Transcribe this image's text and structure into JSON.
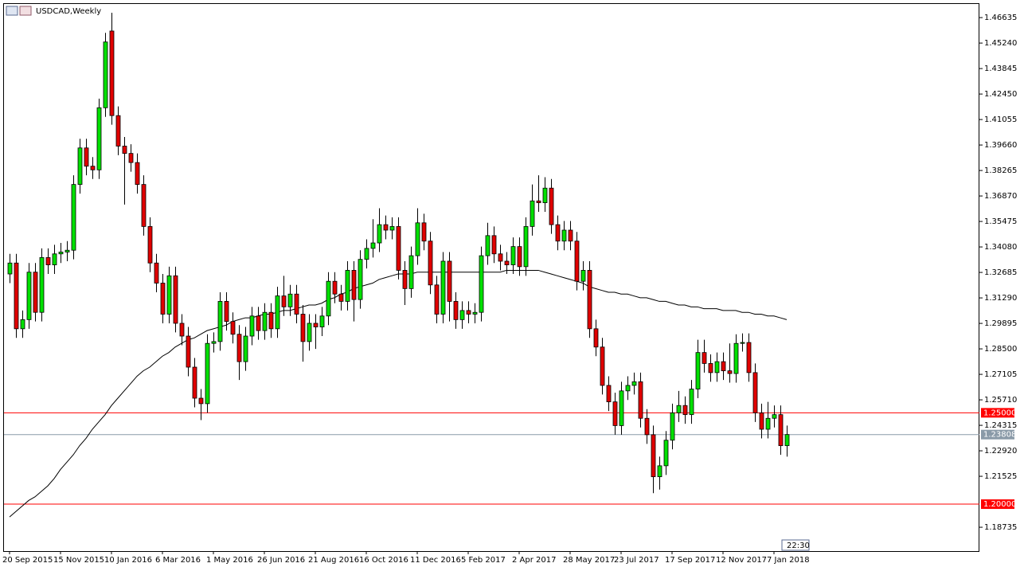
{
  "chart_data": {
    "type": "candlestick",
    "title": "USDCAD,Weekly",
    "timer": "22:30",
    "categories": [
      "20 Sep 2015",
      null,
      null,
      null,
      null,
      null,
      null,
      null,
      "15 Nov 2015",
      null,
      null,
      null,
      null,
      null,
      null,
      null,
      "10 Jan 2016",
      null,
      null,
      null,
      null,
      null,
      null,
      null,
      "6 Mar 2016",
      null,
      null,
      null,
      null,
      null,
      null,
      null,
      "1 May 2016",
      null,
      null,
      null,
      null,
      null,
      null,
      null,
      "26 Jun 2016",
      null,
      null,
      null,
      null,
      null,
      null,
      null,
      "21 Aug 2016",
      null,
      null,
      null,
      null,
      null,
      null,
      null,
      "16 Oct 2016",
      null,
      null,
      null,
      null,
      null,
      null,
      null,
      "11 Dec 2016",
      null,
      null,
      null,
      null,
      null,
      null,
      null,
      "5 Feb 2017",
      null,
      null,
      null,
      null,
      null,
      null,
      null,
      "2 Apr 2017",
      null,
      null,
      null,
      null,
      null,
      null,
      null,
      "28 May 2017",
      null,
      null,
      null,
      null,
      null,
      null,
      null,
      "23 Jul 2017",
      null,
      null,
      null,
      null,
      null,
      null,
      null,
      "17 Sep 2017",
      null,
      null,
      null,
      null,
      null,
      null,
      null,
      "12 Nov 2017",
      null,
      null,
      null,
      null,
      null,
      null,
      null,
      "7 Jan 2018",
      null,
      null
    ],
    "open": [
      1.326,
      1.332,
      1.296,
      1.301,
      1.327,
      1.305,
      1.335,
      1.331,
      1.337,
      1.338,
      1.339,
      1.375,
      1.395,
      1.385,
      1.383,
      1.417,
      1.459,
      1.4127,
      1.396,
      1.392,
      1.387,
      1.375,
      1.352,
      1.332,
      1.321,
      1.304,
      1.325,
      1.299,
      1.292,
      1.275,
      1.258,
      1.255,
      1.288,
      1.289,
      1.311,
      1.3,
      1.293,
      1.278,
      1.292,
      1.303,
      1.295,
      1.305,
      1.296,
      1.314,
      1.308,
      1.315,
      1.304,
      1.289,
      1.299,
      1.297,
      1.303,
      1.322,
      1.315,
      1.311,
      1.328,
      1.312,
      1.334,
      1.34,
      1.343,
      1.353,
      1.35,
      1.352,
      1.328,
      1.318,
      1.336,
      1.354,
      1.344,
      1.32,
      1.304,
      1.333,
      1.311,
      1.301,
      1.306,
      1.304,
      1.305,
      1.336,
      1.347,
      1.337,
      1.333,
      1.331,
      1.341,
      1.33,
      1.352,
      1.366,
      1.365,
      1.373,
      1.353,
      1.344,
      1.35,
      1.344,
      1.322,
      1.328,
      1.296,
      1.286,
      1.265,
      1.256,
      1.243,
      1.262,
      1.265,
      1.267,
      1.247,
      1.238,
      1.215,
      1.221,
      1.235,
      1.25,
      1.254,
      1.249,
      1.263,
      1.283,
      1.277,
      1.272,
      1.278,
      1.273,
      1.2715,
      1.288,
      1.2885,
      1.272,
      1.25,
      1.241,
      1.247,
      1.249,
      1.232
    ],
    "high": [
      1.337,
      1.337,
      1.306,
      1.332,
      1.332,
      1.34,
      1.34,
      1.342,
      1.343,
      1.344,
      1.38,
      1.4,
      1.4,
      1.39,
      1.422,
      1.458,
      1.469,
      1.4177,
      1.401,
      1.397,
      1.392,
      1.38,
      1.357,
      1.337,
      1.326,
      1.33,
      1.33,
      1.304,
      1.297,
      1.28,
      1.263,
      1.293,
      1.294,
      1.316,
      1.316,
      1.305,
      1.298,
      1.297,
      1.308,
      1.308,
      1.31,
      1.31,
      1.319,
      1.325,
      1.32,
      1.32,
      1.309,
      1.304,
      1.304,
      1.308,
      1.327,
      1.327,
      1.32,
      1.333,
      1.333,
      1.339,
      1.345,
      1.356,
      1.362,
      1.358,
      1.357,
      1.357,
      1.333,
      1.341,
      1.362,
      1.359,
      1.349,
      1.325,
      1.338,
      1.338,
      1.316,
      1.311,
      1.311,
      1.31,
      1.341,
      1.354,
      1.352,
      1.342,
      1.338,
      1.346,
      1.346,
      1.357,
      1.375,
      1.38,
      1.379,
      1.378,
      1.358,
      1.355,
      1.355,
      1.349,
      1.333,
      1.333,
      1.301,
      1.291,
      1.27,
      1.261,
      1.267,
      1.27,
      1.272,
      1.272,
      1.252,
      1.243,
      1.226,
      1.24,
      1.255,
      1.262,
      1.259,
      1.268,
      1.29,
      1.29,
      1.282,
      1.283,
      1.283,
      1.288,
      1.293,
      1.2935,
      1.2935,
      1.277,
      1.255,
      1.256,
      1.254,
      1.254,
      1.243
    ],
    "low": [
      1.321,
      1.291,
      1.291,
      1.296,
      1.3,
      1.3,
      1.326,
      1.326,
      1.332,
      1.333,
      1.334,
      1.37,
      1.38,
      1.378,
      1.378,
      1.412,
      1.4077,
      1.391,
      1.364,
      1.382,
      1.37,
      1.347,
      1.327,
      1.316,
      1.299,
      1.299,
      1.294,
      1.287,
      1.27,
      1.253,
      1.246,
      1.25,
      1.283,
      1.284,
      1.295,
      1.288,
      1.268,
      1.273,
      1.287,
      1.29,
      1.29,
      1.291,
      1.291,
      1.303,
      1.303,
      1.299,
      1.278,
      1.284,
      1.285,
      1.292,
      1.298,
      1.31,
      1.306,
      1.306,
      1.3,
      1.307,
      1.329,
      1.335,
      1.338,
      1.345,
      1.345,
      1.323,
      1.309,
      1.313,
      1.331,
      1.339,
      1.315,
      1.299,
      1.299,
      1.3,
      1.296,
      1.296,
      1.299,
      1.299,
      1.3,
      1.331,
      1.332,
      1.328,
      1.326,
      1.326,
      1.325,
      1.325,
      1.347,
      1.36,
      1.36,
      1.348,
      1.339,
      1.339,
      1.339,
      1.317,
      1.317,
      1.291,
      1.281,
      1.26,
      1.251,
      1.238,
      1.238,
      1.257,
      1.26,
      1.242,
      1.233,
      1.206,
      1.208,
      1.216,
      1.23,
      1.245,
      1.244,
      1.244,
      1.258,
      1.272,
      1.267,
      1.267,
      1.268,
      1.2665,
      1.2665,
      1.2835,
      1.267,
      1.245,
      1.236,
      1.236,
      1.242,
      1.227,
      1.226
    ],
    "close": [
      1.332,
      1.296,
      1.301,
      1.327,
      1.305,
      1.335,
      1.331,
      1.337,
      1.338,
      1.339,
      1.375,
      1.395,
      1.385,
      1.383,
      1.417,
      1.453,
      1.4127,
      1.396,
      1.392,
      1.387,
      1.375,
      1.352,
      1.332,
      1.321,
      1.304,
      1.325,
      1.299,
      1.292,
      1.275,
      1.258,
      1.255,
      1.288,
      1.289,
      1.311,
      1.3,
      1.293,
      1.278,
      1.292,
      1.303,
      1.295,
      1.305,
      1.296,
      1.314,
      1.308,
      1.315,
      1.304,
      1.289,
      1.299,
      1.297,
      1.303,
      1.322,
      1.315,
      1.311,
      1.328,
      1.312,
      1.334,
      1.34,
      1.343,
      1.353,
      1.35,
      1.352,
      1.328,
      1.318,
      1.336,
      1.354,
      1.344,
      1.32,
      1.304,
      1.333,
      1.311,
      1.301,
      1.306,
      1.304,
      1.305,
      1.336,
      1.347,
      1.337,
      1.333,
      1.331,
      1.341,
      1.33,
      1.352,
      1.366,
      1.365,
      1.373,
      1.353,
      1.344,
      1.35,
      1.344,
      1.322,
      1.328,
      1.296,
      1.286,
      1.265,
      1.256,
      1.243,
      1.262,
      1.265,
      1.267,
      1.247,
      1.238,
      1.215,
      1.221,
      1.235,
      1.25,
      1.254,
      1.249,
      1.263,
      1.283,
      1.277,
      1.272,
      1.278,
      1.273,
      1.2715,
      1.288,
      1.2885,
      1.272,
      1.25,
      1.241,
      1.247,
      1.249,
      1.232,
      1.2381
    ],
    "up_color": "#00e000",
    "down_color": "#e00000",
    "wick_color": "#000000",
    "overlay_line": {
      "color": "#000000",
      "values": [
        1.193,
        1.196,
        1.199,
        1.202,
        1.204,
        1.207,
        1.21,
        1.214,
        1.219,
        1.223,
        1.227,
        1.232,
        1.236,
        1.241,
        1.245,
        1.249,
        1.254,
        1.258,
        1.262,
        1.266,
        1.27,
        1.273,
        1.275,
        1.278,
        1.281,
        1.283,
        1.286,
        1.288,
        1.29,
        1.291,
        1.293,
        1.295,
        1.296,
        1.297,
        1.298,
        1.3,
        1.301,
        1.302,
        1.302,
        1.303,
        1.304,
        1.304,
        1.305,
        1.306,
        1.306,
        1.307,
        1.308,
        1.309,
        1.309,
        1.31,
        1.312,
        1.313,
        1.315,
        1.316,
        1.318,
        1.319,
        1.32,
        1.321,
        1.323,
        1.324,
        1.325,
        1.326,
        1.326,
        1.326,
        1.327,
        1.327,
        1.327,
        1.327,
        1.327,
        1.327,
        1.327,
        1.327,
        1.327,
        1.327,
        1.327,
        1.327,
        1.327,
        1.327,
        1.328,
        1.328,
        1.328,
        1.328,
        1.328,
        1.328,
        1.327,
        1.326,
        1.325,
        1.324,
        1.323,
        1.322,
        1.321,
        1.319,
        1.318,
        1.317,
        1.316,
        1.316,
        1.315,
        1.315,
        1.314,
        1.313,
        1.313,
        1.312,
        1.311,
        1.311,
        1.31,
        1.309,
        1.309,
        1.308,
        1.308,
        1.307,
        1.307,
        1.307,
        1.306,
        1.306,
        1.306,
        1.305,
        1.305,
        1.304,
        1.304,
        1.303,
        1.303,
        1.302,
        1.301
      ]
    },
    "hlines": [
      {
        "value": 1.25,
        "label": "1.25000",
        "color": "#ff0000"
      },
      {
        "value": 1.2,
        "label": "1.20000",
        "color": "#ff0000"
      }
    ],
    "current_price": {
      "value": 1.23808,
      "color": "#8a9aa8"
    },
    "ylim": [
      1.1743,
      1.4738
    ],
    "yticks": [
      1.46635,
      {
        "value": 1.4524,
        "label": "1.45240"
      },
      1.43845,
      {
        "value": 1.4245,
        "label": "1.42450"
      },
      1.41055,
      {
        "value": 1.3966,
        "label": "1.39660"
      },
      1.38265,
      {
        "value": 1.3687,
        "label": "1.36870"
      },
      1.35475,
      {
        "value": 1.3408,
        "label": "1.34080"
      },
      1.32685,
      {
        "value": 1.3129,
        "label": "1.31290"
      },
      1.29895,
      {
        "value": 1.285,
        "label": "1.28500"
      },
      1.27105,
      {
        "value": 1.2571,
        "label": "1.25710"
      },
      1.24315,
      {
        "value": 1.2292,
        "label": "1.22920"
      },
      1.21525,
      1.18735
    ]
  }
}
